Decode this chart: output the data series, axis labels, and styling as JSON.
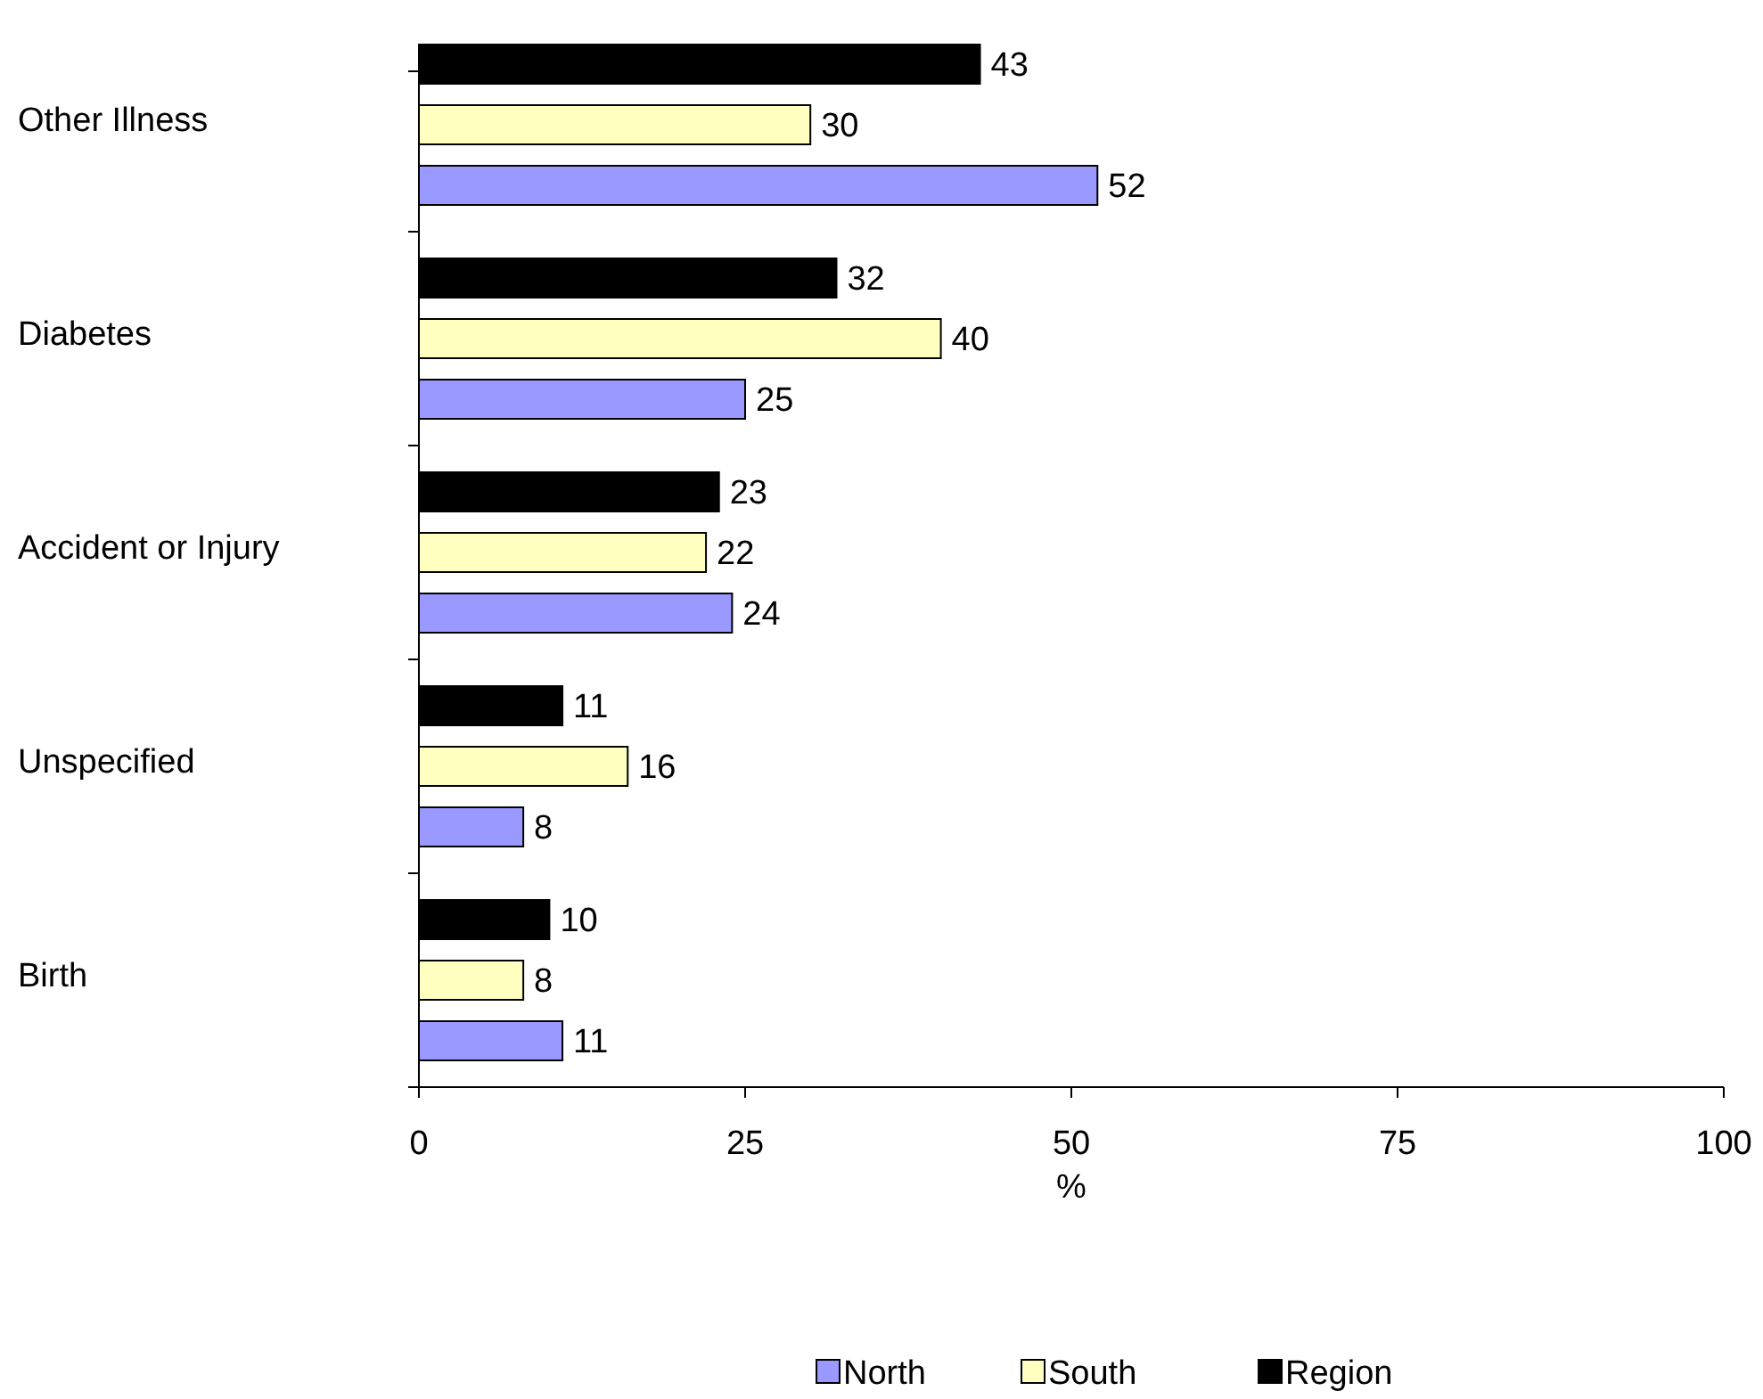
{
  "chart_data": {
    "type": "bar",
    "orientation": "horizontal",
    "xlabel": "%",
    "categories": [
      "Other Illness",
      "Diabetes",
      "Accident or Injury",
      "Unspecified",
      "Birth"
    ],
    "series": [
      {
        "name": "North",
        "color": "#9999ff",
        "values": [
          52,
          25,
          24,
          8,
          11
        ]
      },
      {
        "name": "South",
        "color": "#ffffc0",
        "values": [
          30,
          40,
          22,
          16,
          8
        ]
      },
      {
        "name": "Region",
        "color": "#000000",
        "values": [
          43,
          32,
          23,
          11,
          10
        ]
      }
    ],
    "xlim": [
      0,
      100
    ],
    "xticks": [
      0,
      25,
      50,
      75,
      100
    ],
    "data_labels": true,
    "legend": "bottom",
    "grid": false
  }
}
